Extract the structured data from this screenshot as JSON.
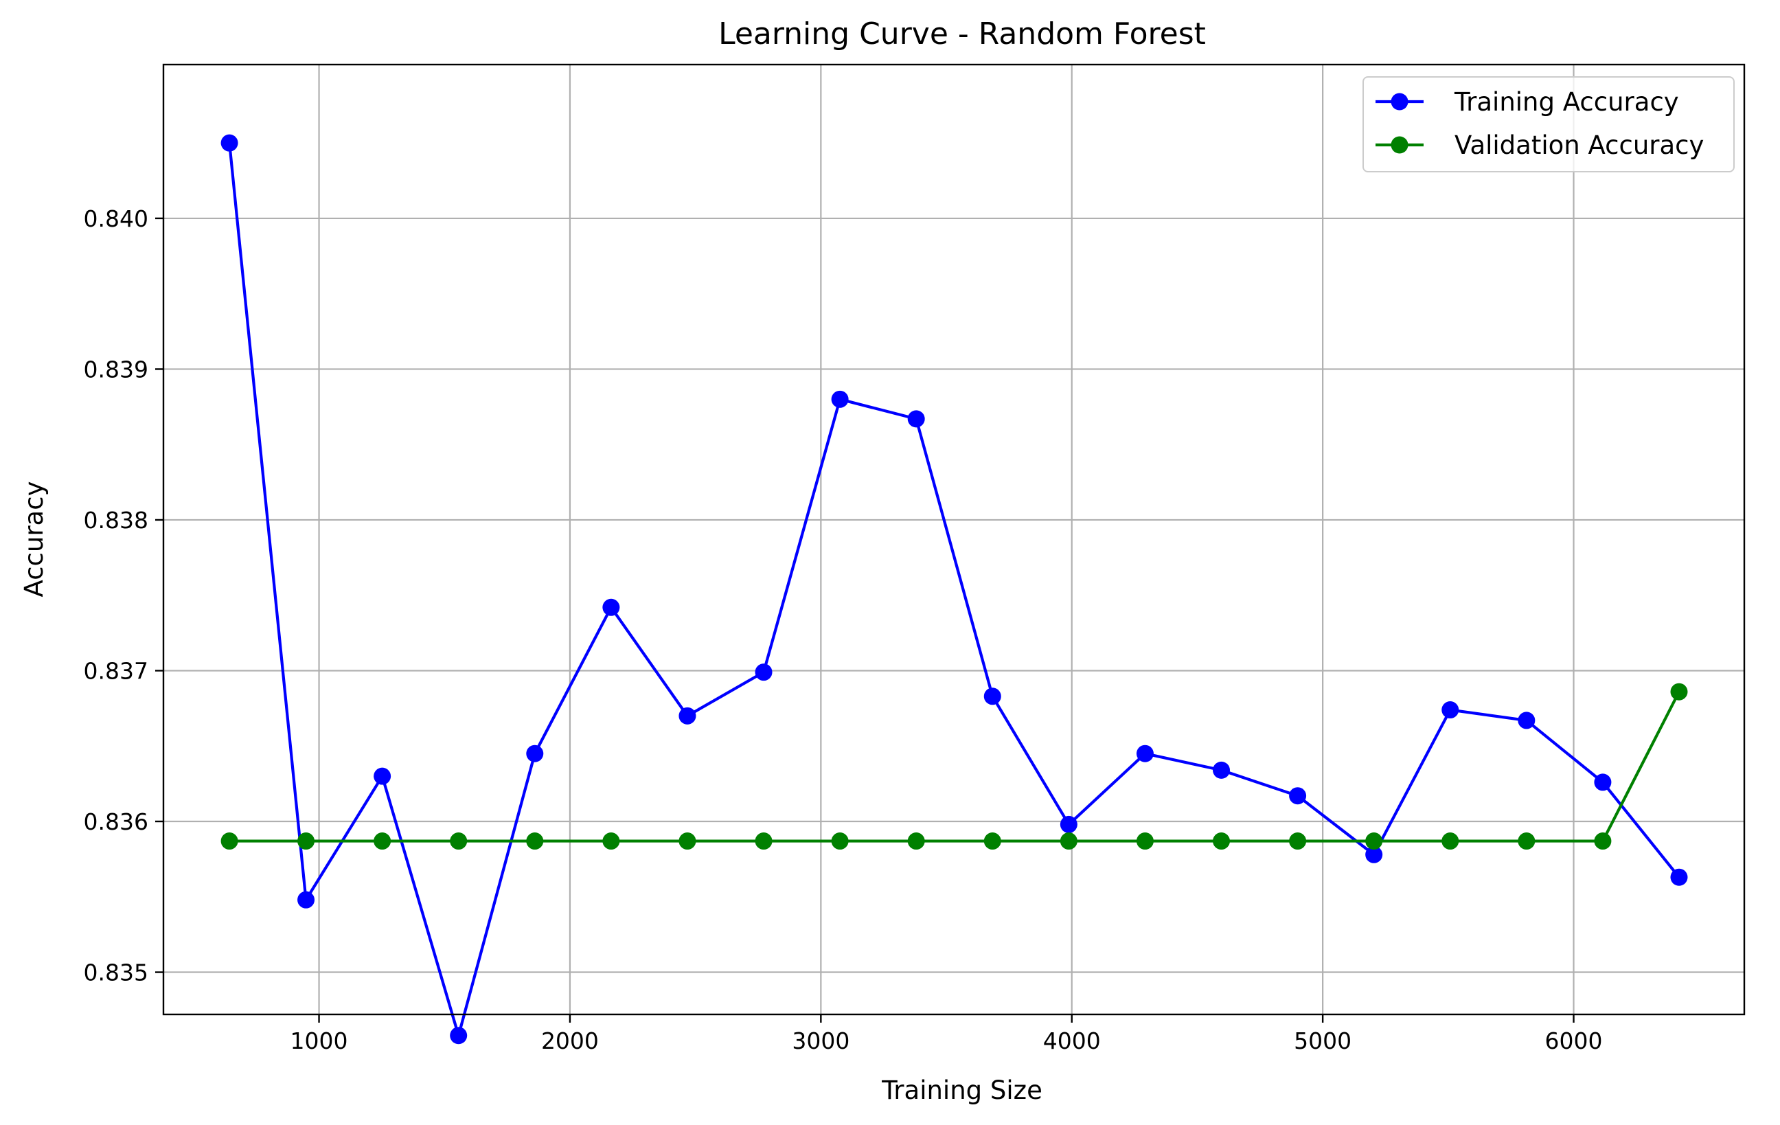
{
  "chart_data": {
    "type": "line",
    "title": "Learning Curve - Random Forest",
    "xlabel": "Training Size",
    "ylabel": "Accuracy",
    "xlim": [
      380,
      6680
    ],
    "ylim": [
      0.83472,
      0.84102
    ],
    "xticks": [
      1000,
      2000,
      3000,
      4000,
      5000,
      6000
    ],
    "xtick_labels": [
      "1000",
      "2000",
      "3000",
      "4000",
      "5000",
      "6000"
    ],
    "yticks": [
      0.835,
      0.836,
      0.837,
      0.838,
      0.839,
      0.84
    ],
    "ytick_labels": [
      "0.835",
      "0.836",
      "0.837",
      "0.838",
      "0.839",
      "0.840"
    ],
    "grid": true,
    "legend_position": "top-right",
    "x": [
      643,
      948,
      1252,
      1556,
      1860,
      2164,
      2468,
      2772,
      3076,
      3380,
      3684,
      3988,
      4292,
      4596,
      4900,
      5204,
      5508,
      5812,
      6116,
      6420
    ],
    "series": [
      {
        "name": "Training Accuracy",
        "color": "#0000ff",
        "values": [
          0.8405,
          0.83548,
          0.8363,
          0.83458,
          0.83645,
          0.83742,
          0.8367,
          0.83699,
          0.8388,
          0.83867,
          0.83683,
          0.83598,
          0.83645,
          0.83634,
          0.83617,
          0.83578,
          0.83674,
          0.83667,
          0.83626,
          0.83563
        ]
      },
      {
        "name": "Validation Accuracy",
        "color": "#008000",
        "values": [
          0.83587,
          0.83587,
          0.83587,
          0.83587,
          0.83587,
          0.83587,
          0.83587,
          0.83587,
          0.83587,
          0.83587,
          0.83587,
          0.83587,
          0.83587,
          0.83587,
          0.83587,
          0.83587,
          0.83587,
          0.83587,
          0.83587,
          0.83686
        ]
      }
    ]
  }
}
